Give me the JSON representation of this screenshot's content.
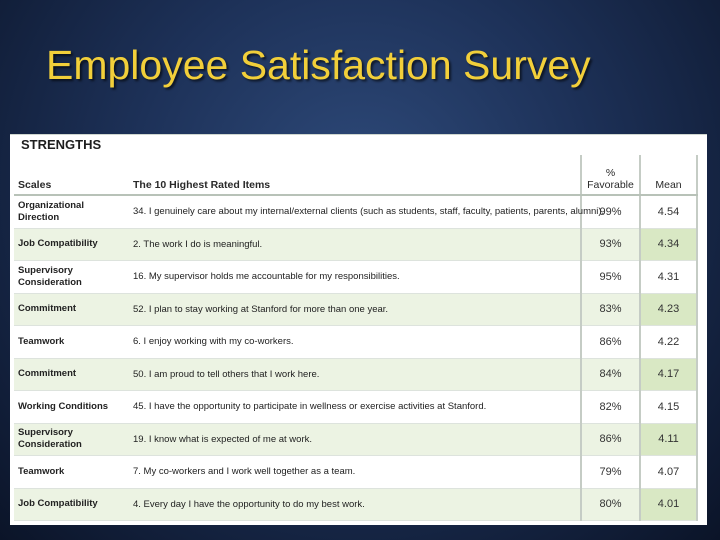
{
  "slide": {
    "title": "Employee Satisfaction Survey"
  },
  "table": {
    "section_title": "STRENGTHS",
    "headers": {
      "scales": "Scales",
      "items": "The 10 Highest Rated Items",
      "favorable_line1": "%",
      "favorable_line2": "Favorable",
      "mean": "Mean"
    },
    "rows": [
      {
        "scale": "Organizational Direction",
        "item": "34. I genuinely care about my internal/external clients (such as students, staff, faculty, patients, parents, alumni).",
        "favorable": "99%",
        "mean": "4.54"
      },
      {
        "scale": "Job Compatibility",
        "item": "2. The work I do is meaningful.",
        "favorable": "93%",
        "mean": "4.34"
      },
      {
        "scale": "Supervisory Consideration",
        "item": "16. My supervisor holds me accountable for my responsibilities.",
        "favorable": "95%",
        "mean": "4.31"
      },
      {
        "scale": "Commitment",
        "item": "52. I plan to stay working at Stanford for more than one year.",
        "favorable": "83%",
        "mean": "4.23"
      },
      {
        "scale": "Teamwork",
        "item": "6. I enjoy working with my co-workers.",
        "favorable": "86%",
        "mean": "4.22"
      },
      {
        "scale": "Commitment",
        "item": "50. I am proud to tell others that I work here.",
        "favorable": "84%",
        "mean": "4.17"
      },
      {
        "scale": "Working Conditions",
        "item": "45. I have the opportunity to participate in wellness or exercise activities at Stanford.",
        "favorable": "82%",
        "mean": "4.15"
      },
      {
        "scale": "Supervisory Consideration",
        "item": "19. I know what is expected of me at work.",
        "favorable": "86%",
        "mean": "4.11"
      },
      {
        "scale": "Teamwork",
        "item": "7. My co-workers and I work well together as a team.",
        "favorable": "79%",
        "mean": "4.07"
      },
      {
        "scale": "Job Compatibility",
        "item": "4. Every day I have the opportunity to do my best work.",
        "favorable": "80%",
        "mean": "4.01"
      }
    ]
  },
  "colors": {
    "title": "#f2cf3a",
    "background": "#1d3158",
    "row_tint": "#ecf3e3",
    "mean_tint": "#d9e8c4"
  }
}
